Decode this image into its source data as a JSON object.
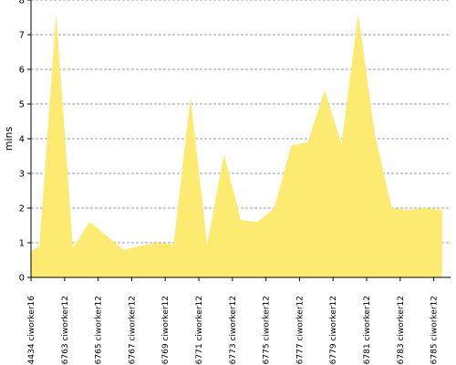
{
  "chart_data": {
    "type": "area",
    "ylabel": "mins",
    "xlabel": "",
    "ylim": [
      0,
      8
    ],
    "yticks": [
      0,
      1,
      2,
      3,
      4,
      5,
      6,
      7,
      8
    ],
    "grid": true,
    "x_tick_labels": [
      "#4434 ciworker16",
      "#6763 ciworker12",
      "#6765 ciworker12",
      "#6767 ciworker12",
      "#6769 ciworker12",
      "#6771 ciworker12",
      "#6773 ciworker12",
      "#6775 ciworker12",
      "#6777 ciworker12",
      "#6779 ciworker12",
      "#6781 ciworker12",
      "#6783 ciworker12",
      "#6785 ciworker12"
    ],
    "tick_index": [
      0,
      2,
      4,
      6,
      8,
      10,
      12,
      14,
      16,
      18,
      20,
      22,
      24
    ],
    "build_index": [
      0,
      0.5,
      1.5,
      2.5,
      3.5,
      4.5,
      5.5,
      6.5,
      7.5,
      8.5,
      9.5,
      10.5,
      11.5,
      12.5,
      13.5,
      14.5,
      15.5,
      16.5,
      17.5,
      18.5,
      19.5,
      20.5,
      21.5,
      22.5,
      23.5,
      24.5
    ],
    "series": [
      {
        "color": "#88a8d8",
        "values": [
          0.65,
          0.75
        ]
      },
      {
        "color": "#fdea71",
        "values": [
          0.75,
          0.9,
          7.6,
          0.85,
          1.6,
          1.2,
          0.8,
          0.9,
          1.0,
          0.95,
          5.2,
          0.95,
          3.55,
          1.65,
          1.6,
          2.0,
          3.8,
          3.9,
          5.4,
          3.85,
          7.6,
          4.1,
          2.0,
          1.95,
          2.0,
          1.95
        ]
      }
    ],
    "colors": {
      "grid": "#808080",
      "axis": "#000000"
    }
  }
}
